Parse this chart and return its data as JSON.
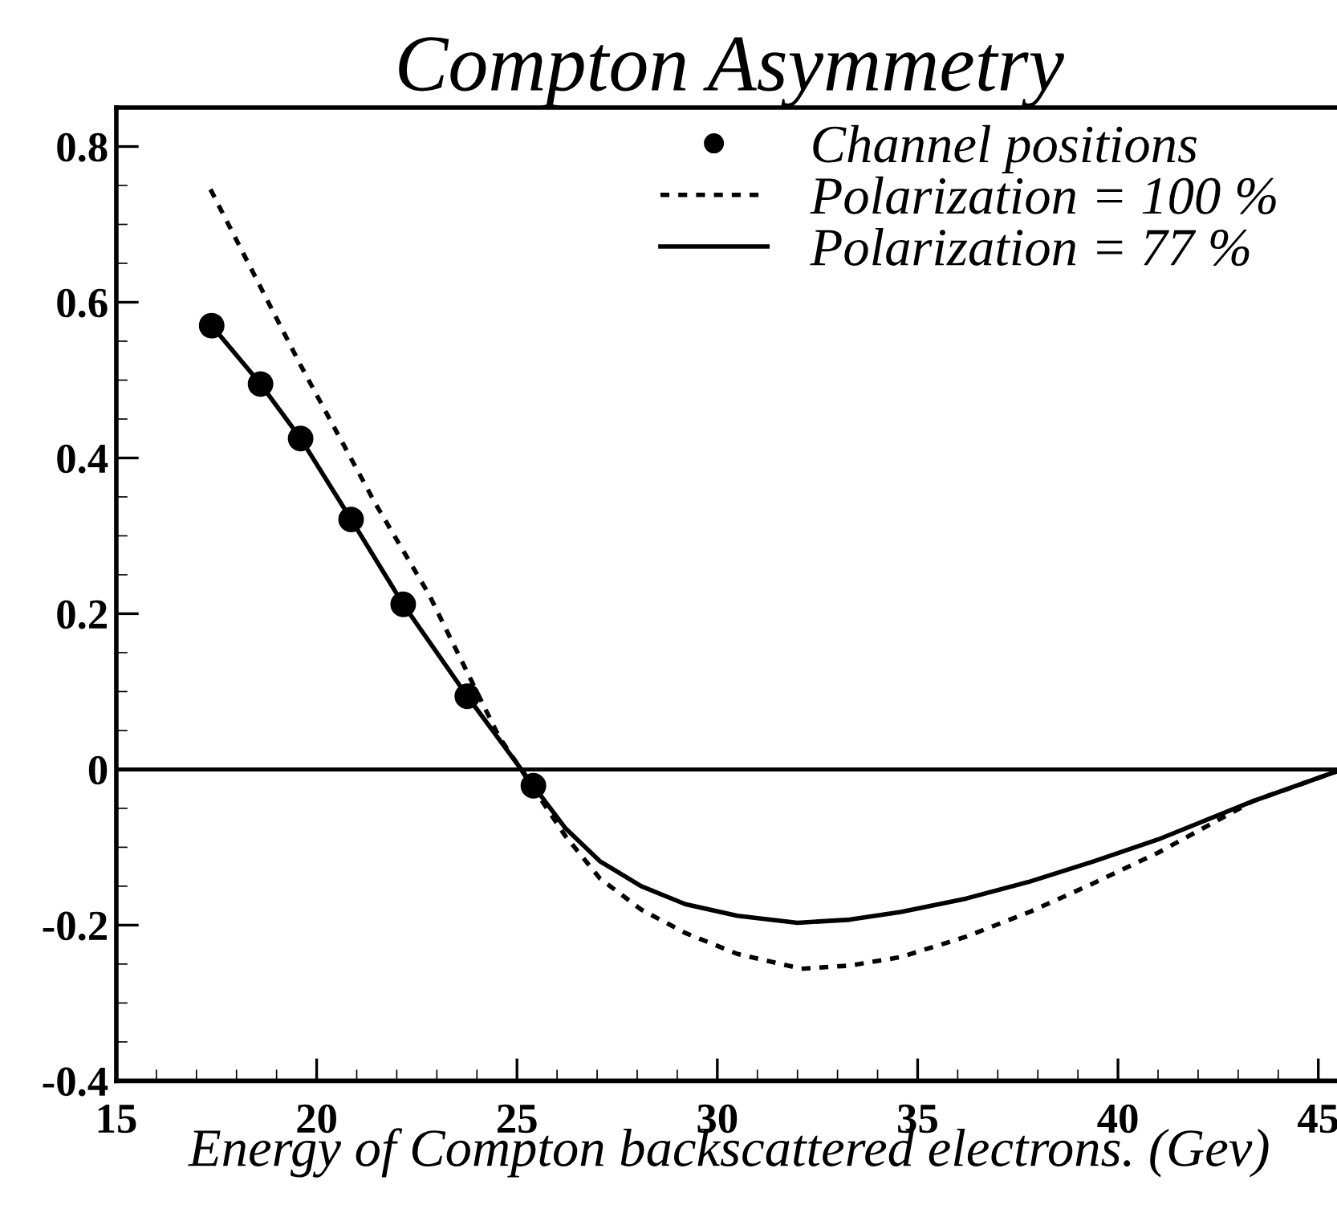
{
  "chart_data": {
    "type": "line",
    "title": "Compton Asymmetry",
    "xlabel": "Energy of Compton backscattered electrons. (Gev)",
    "xlim": [
      15,
      45.6
    ],
    "xticks": [
      15,
      20,
      25,
      30,
      35,
      40,
      45
    ],
    "ylim": [
      -0.4,
      0.85
    ],
    "yticks": [
      -0.4,
      -0.2,
      0,
      0.2,
      0.4,
      0.6,
      0.8
    ],
    "legend": "top right",
    "grid": false,
    "ref_lines": [
      {
        "axis": "y",
        "value": 0,
        "color": "#000000",
        "line_style": "solid"
      }
    ],
    "series": [
      {
        "name": "Channel positions",
        "type": "scatter",
        "marker": "circle",
        "color": "#000000",
        "x": [
          17.38,
          18.6,
          19.6,
          20.86,
          22.16,
          23.76,
          25.41
        ],
        "values": [
          0.57,
          0.495,
          0.425,
          0.321,
          0.212,
          0.094,
          -0.021
        ]
      },
      {
        "name": "Polarization = 100 %",
        "line_style": "dotted",
        "color": "#000000",
        "x": [
          17.35,
          19.59,
          21.46,
          22.8,
          24.54,
          25.1,
          26.2,
          27.07,
          28.1,
          29.2,
          30.5,
          32.1,
          33.3,
          34.58,
          36.2,
          37.8,
          39.4,
          41.0,
          43.36,
          45.6
        ],
        "values": [
          0.745,
          0.52,
          0.342,
          0.225,
          0.043,
          0.0,
          -0.085,
          -0.14,
          -0.18,
          -0.21,
          -0.237,
          -0.256,
          -0.252,
          -0.241,
          -0.215,
          -0.183,
          -0.146,
          -0.107,
          -0.041,
          0
        ]
      },
      {
        "name": "Polarization = 77 %",
        "line_style": "solid",
        "color": "#000000",
        "x": [
          17.38,
          18.6,
          19.6,
          20.86,
          22.16,
          23.76,
          25.41,
          26.2,
          27.07,
          28.1,
          29.2,
          30.5,
          32.0,
          33.3,
          34.58,
          36.2,
          37.8,
          39.4,
          41.0,
          43.36,
          45.6
        ],
        "values": [
          0.57,
          0.495,
          0.425,
          0.321,
          0.212,
          0.094,
          -0.021,
          -0.075,
          -0.118,
          -0.15,
          -0.173,
          -0.188,
          -0.197,
          -0.193,
          -0.183,
          -0.166,
          -0.144,
          -0.118,
          -0.09,
          -0.041,
          0
        ]
      }
    ]
  }
}
